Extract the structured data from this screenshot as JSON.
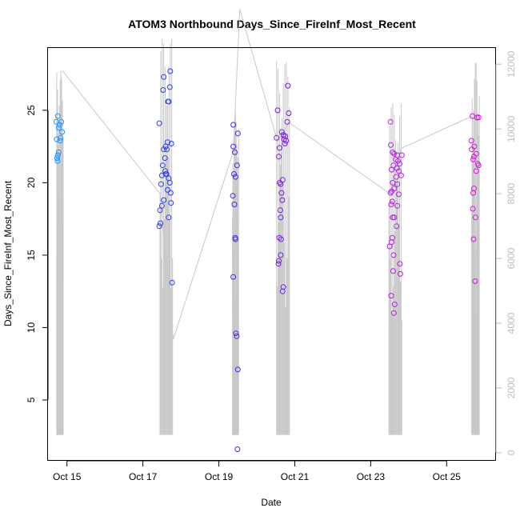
{
  "chart_data": {
    "type": "scatter",
    "title": "ATOM3 Northbound Days_Since_FireInf_Most_Recent",
    "xlabel": "Date",
    "ylabel": "Days_Since_FireInf_Most_Recent",
    "x_tick_labels": [
      "Oct 15",
      "Oct 17",
      "Oct 19",
      "Oct 21",
      "Oct 23",
      "Oct 25"
    ],
    "x_ticks_day": [
      15,
      17,
      19,
      21,
      23,
      25
    ],
    "xlim_day": [
      14.5,
      26.3
    ],
    "ylim": [
      0.8,
      29.3
    ],
    "y_ticks": [
      5,
      10,
      15,
      20,
      25
    ],
    "y2lim": [
      -250,
      12500
    ],
    "y2_ticks": [
      0,
      2000,
      4000,
      6000,
      8000,
      10000,
      12000
    ],
    "grid": false,
    "points": [
      {
        "day": 14.76,
        "y": 24.6
      },
      {
        "day": 14.72,
        "y": 24.2
      },
      {
        "day": 14.8,
        "y": 24.0
      },
      {
        "day": 14.78,
        "y": 23.8
      },
      {
        "day": 14.85,
        "y": 24.2
      },
      {
        "day": 14.87,
        "y": 23.5
      },
      {
        "day": 14.83,
        "y": 23.1
      },
      {
        "day": 14.73,
        "y": 23.0
      },
      {
        "day": 14.82,
        "y": 22.9
      },
      {
        "day": 14.78,
        "y": 22.1
      },
      {
        "day": 14.76,
        "y": 21.9
      },
      {
        "day": 14.74,
        "y": 21.7
      },
      {
        "day": 14.75,
        "y": 21.5
      },
      {
        "day": 17.43,
        "y": 24.1
      },
      {
        "day": 17.55,
        "y": 27.3
      },
      {
        "day": 17.53,
        "y": 26.4
      },
      {
        "day": 17.72,
        "y": 27.7
      },
      {
        "day": 17.71,
        "y": 26.6
      },
      {
        "day": 17.66,
        "y": 25.6
      },
      {
        "day": 17.68,
        "y": 25.6
      },
      {
        "day": 17.65,
        "y": 22.8
      },
      {
        "day": 17.75,
        "y": 22.7
      },
      {
        "day": 17.6,
        "y": 22.5
      },
      {
        "day": 17.55,
        "y": 22.3
      },
      {
        "day": 17.63,
        "y": 22.3
      },
      {
        "day": 17.58,
        "y": 21.7
      },
      {
        "day": 17.52,
        "y": 21.2
      },
      {
        "day": 17.59,
        "y": 20.8
      },
      {
        "day": 17.62,
        "y": 20.6
      },
      {
        "day": 17.6,
        "y": 20.6
      },
      {
        "day": 17.5,
        "y": 20.5
      },
      {
        "day": 17.68,
        "y": 20.3
      },
      {
        "day": 17.71,
        "y": 20.0
      },
      {
        "day": 17.48,
        "y": 19.9
      },
      {
        "day": 17.65,
        "y": 19.5
      },
      {
        "day": 17.73,
        "y": 19.3
      },
      {
        "day": 17.55,
        "y": 18.8
      },
      {
        "day": 17.74,
        "y": 18.6
      },
      {
        "day": 17.5,
        "y": 18.4
      },
      {
        "day": 17.45,
        "y": 18.1
      },
      {
        "day": 17.68,
        "y": 17.6
      },
      {
        "day": 17.46,
        "y": 17.2
      },
      {
        "day": 17.43,
        "y": 17.0
      },
      {
        "day": 17.77,
        "y": 13.1
      },
      {
        "day": 19.38,
        "y": 24.0
      },
      {
        "day": 19.5,
        "y": 23.4
      },
      {
        "day": 19.38,
        "y": 22.5
      },
      {
        "day": 19.42,
        "y": 22.1
      },
      {
        "day": 19.48,
        "y": 21.2
      },
      {
        "day": 19.4,
        "y": 20.6
      },
      {
        "day": 19.44,
        "y": 20.4
      },
      {
        "day": 19.37,
        "y": 19.1
      },
      {
        "day": 19.41,
        "y": 18.5
      },
      {
        "day": 19.43,
        "y": 16.2
      },
      {
        "day": 19.44,
        "y": 16.1
      },
      {
        "day": 19.38,
        "y": 13.5
      },
      {
        "day": 19.45,
        "y": 9.6
      },
      {
        "day": 19.47,
        "y": 9.4
      },
      {
        "day": 19.5,
        "y": 7.1
      },
      {
        "day": 19.49,
        "y": 1.6
      },
      {
        "day": 20.55,
        "y": 25.0
      },
      {
        "day": 20.82,
        "y": 26.7
      },
      {
        "day": 20.84,
        "y": 24.8
      },
      {
        "day": 20.8,
        "y": 24.2
      },
      {
        "day": 20.66,
        "y": 23.5
      },
      {
        "day": 20.52,
        "y": 23.1
      },
      {
        "day": 20.7,
        "y": 23.3
      },
      {
        "day": 20.75,
        "y": 23.2
      },
      {
        "day": 20.72,
        "y": 23.0
      },
      {
        "day": 20.77,
        "y": 22.9
      },
      {
        "day": 20.74,
        "y": 22.7
      },
      {
        "day": 20.6,
        "y": 22.4
      },
      {
        "day": 20.58,
        "y": 21.8
      },
      {
        "day": 20.68,
        "y": 20.2
      },
      {
        "day": 20.6,
        "y": 20.0
      },
      {
        "day": 20.63,
        "y": 19.9
      },
      {
        "day": 20.65,
        "y": 19.3
      },
      {
        "day": 20.67,
        "y": 18.8
      },
      {
        "day": 20.62,
        "y": 18.1
      },
      {
        "day": 20.63,
        "y": 17.6
      },
      {
        "day": 20.59,
        "y": 16.2
      },
      {
        "day": 20.64,
        "y": 16.1
      },
      {
        "day": 20.63,
        "y": 15.0
      },
      {
        "day": 20.58,
        "y": 14.6
      },
      {
        "day": 20.57,
        "y": 14.4
      },
      {
        "day": 20.7,
        "y": 12.8
      },
      {
        "day": 20.68,
        "y": 12.5
      },
      {
        "day": 23.52,
        "y": 24.2
      },
      {
        "day": 23.53,
        "y": 22.6
      },
      {
        "day": 23.58,
        "y": 22.1
      },
      {
        "day": 23.62,
        "y": 22.0
      },
      {
        "day": 23.7,
        "y": 21.9
      },
      {
        "day": 23.82,
        "y": 21.9
      },
      {
        "day": 23.66,
        "y": 21.6
      },
      {
        "day": 23.72,
        "y": 21.5
      },
      {
        "day": 23.76,
        "y": 21.3
      },
      {
        "day": 23.6,
        "y": 21.2
      },
      {
        "day": 23.69,
        "y": 21.0
      },
      {
        "day": 23.55,
        "y": 20.9
      },
      {
        "day": 23.74,
        "y": 20.8
      },
      {
        "day": 23.8,
        "y": 20.5
      },
      {
        "day": 23.67,
        "y": 20.4
      },
      {
        "day": 23.58,
        "y": 20.0
      },
      {
        "day": 23.7,
        "y": 19.9
      },
      {
        "day": 23.62,
        "y": 19.6
      },
      {
        "day": 23.55,
        "y": 19.4
      },
      {
        "day": 23.52,
        "y": 19.3
      },
      {
        "day": 23.74,
        "y": 19.2
      },
      {
        "day": 23.57,
        "y": 18.7
      },
      {
        "day": 23.54,
        "y": 18.5
      },
      {
        "day": 23.7,
        "y": 18.4
      },
      {
        "day": 23.58,
        "y": 17.6
      },
      {
        "day": 23.62,
        "y": 17.6
      },
      {
        "day": 23.68,
        "y": 17.0
      },
      {
        "day": 23.57,
        "y": 16.2
      },
      {
        "day": 23.55,
        "y": 15.9
      },
      {
        "day": 23.5,
        "y": 15.6
      },
      {
        "day": 23.6,
        "y": 15.0
      },
      {
        "day": 23.77,
        "y": 14.4
      },
      {
        "day": 23.59,
        "y": 13.9
      },
      {
        "day": 23.78,
        "y": 13.7
      },
      {
        "day": 23.54,
        "y": 12.2
      },
      {
        "day": 23.63,
        "y": 11.6
      },
      {
        "day": 23.61,
        "y": 11.0
      },
      {
        "day": 25.68,
        "y": 24.6
      },
      {
        "day": 25.8,
        "y": 24.5
      },
      {
        "day": 25.84,
        "y": 24.5
      },
      {
        "day": 25.65,
        "y": 22.9
      },
      {
        "day": 25.73,
        "y": 22.5
      },
      {
        "day": 25.66,
        "y": 22.3
      },
      {
        "day": 25.78,
        "y": 22.0
      },
      {
        "day": 25.72,
        "y": 21.8
      },
      {
        "day": 25.7,
        "y": 21.6
      },
      {
        "day": 25.82,
        "y": 21.3
      },
      {
        "day": 25.84,
        "y": 21.2
      },
      {
        "day": 25.78,
        "y": 20.8
      },
      {
        "day": 25.72,
        "y": 19.6
      },
      {
        "day": 25.7,
        "y": 19.3
      },
      {
        "day": 25.69,
        "y": 18.2
      },
      {
        "day": 25.76,
        "y": 17.6
      },
      {
        "day": 25.71,
        "y": 16.1
      },
      {
        "day": 25.75,
        "y": 13.2
      }
    ],
    "points_colors": [
      {
        "until_day": 15.5,
        "color": "#1E90FF"
      },
      {
        "until_day": 18.5,
        "color": "#2C3EEB"
      },
      {
        "until_day": 20.0,
        "color": "#3F2BE8"
      },
      {
        "until_day": 22.0,
        "color": "#7A1CE6"
      },
      {
        "until_day": 24.5,
        "color": "#B61DE8"
      },
      {
        "until_day": 27.0,
        "color": "#D815E0"
      }
    ],
    "secondary_series": {
      "axis": "right",
      "color": "#c8c8c8",
      "bursts": [
        {
          "start_day": 14.73,
          "end_day": 14.9,
          "low": 550,
          "high": 11800
        },
        {
          "start_day": 17.45,
          "end_day": 17.78,
          "low": 550,
          "high": 12800
        },
        {
          "start_day": 19.36,
          "end_day": 19.52,
          "low": 550,
          "high": 10500
        },
        {
          "start_day": 20.52,
          "end_day": 20.86,
          "low": 550,
          "high": 12100
        },
        {
          "start_day": 23.48,
          "end_day": 23.82,
          "low": 550,
          "high": 10800
        },
        {
          "start_day": 25.66,
          "end_day": 25.86,
          "low": 550,
          "high": 12100
        }
      ],
      "connectors": [
        [
          14.88,
          11800
        ],
        [
          17.45,
          8000
        ],
        [
          17.8,
          3500
        ],
        [
          19.38,
          9300
        ],
        [
          19.55,
          13700
        ],
        [
          20.55,
          9600
        ],
        [
          20.85,
          10200
        ],
        [
          23.5,
          8000
        ],
        [
          23.8,
          9400
        ],
        [
          25.68,
          10400
        ]
      ]
    }
  }
}
